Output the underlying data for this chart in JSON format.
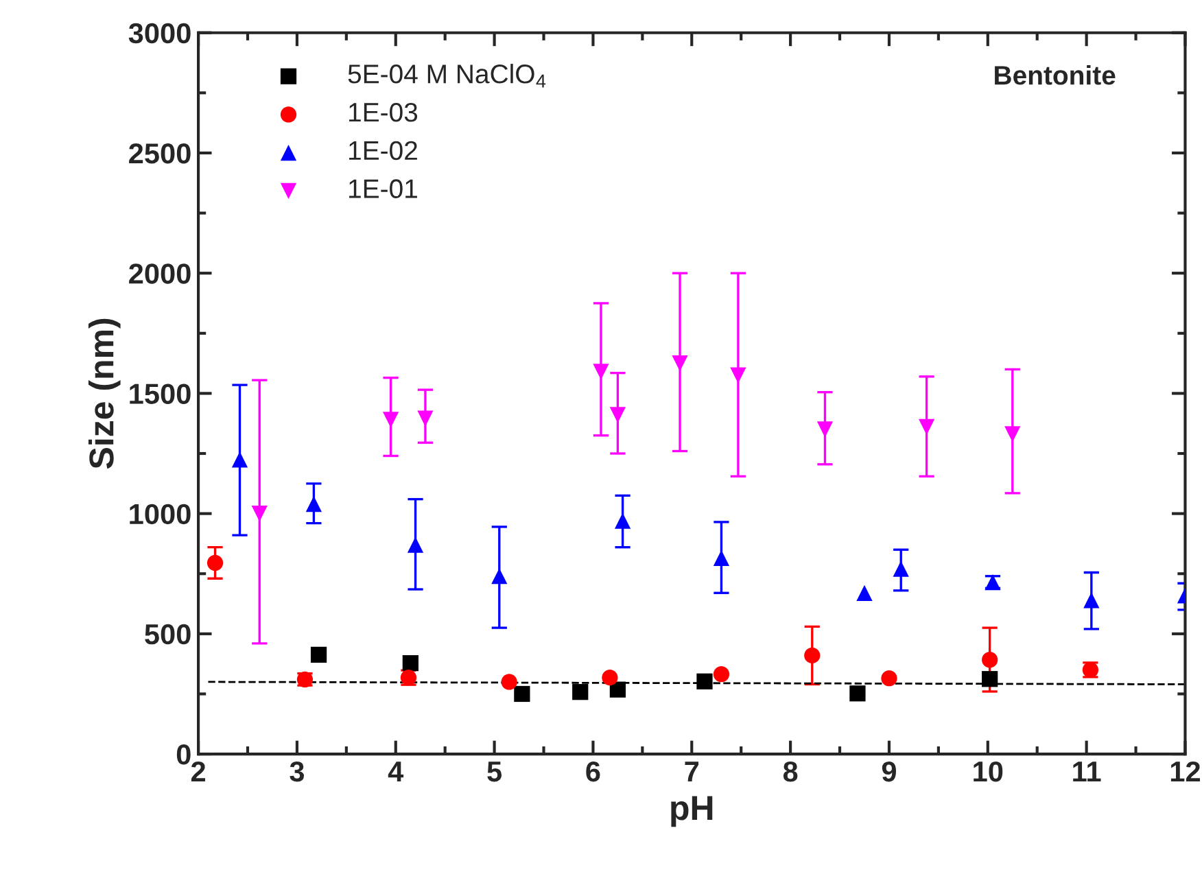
{
  "chart_data": {
    "type": "scatter",
    "xlabel": "pH",
    "ylabel": "Size (nm)",
    "xlim": [
      2,
      12
    ],
    "xticks": [
      2,
      3,
      4,
      5,
      6,
      7,
      8,
      9,
      10,
      11,
      12
    ],
    "ylim": [
      0,
      3000
    ],
    "yticks": [
      0,
      500,
      1000,
      1500,
      2000,
      2500,
      3000
    ],
    "grid": false,
    "legend": "top left",
    "annotations": [
      "Bentonite"
    ],
    "series": [
      {
        "name": "5E-04 M NaClO$_{4}$",
        "color": "#000000",
        "marker": "square",
        "x": [
          3.22,
          4.15,
          5.28,
          5.87,
          6.25,
          7.13,
          8.68,
          10.02
        ],
        "values": [
          413,
          378,
          250,
          258,
          268,
          302,
          252,
          312
        ]
      },
      {
        "name": "1E-03",
        "color": "#ff0000",
        "marker": "circle",
        "x": [
          2.17,
          3.08,
          4.13,
          5.15,
          6.17,
          7.3,
          8.22,
          9.0,
          10.02,
          11.04
        ],
        "values": [
          795,
          310,
          318,
          300,
          318,
          332,
          410,
          315,
          392,
          350
        ],
        "errors": [
          [
            730,
            860
          ],
          [
            285,
            335
          ],
          [
            288,
            348
          ],
          null,
          null,
          null,
          [
            290,
            530
          ],
          null,
          [
            260,
            525
          ],
          [
            320,
            380
          ]
        ]
      },
      {
        "name": "1E-02",
        "color": "#0000ff",
        "marker": "triangle",
        "x": [
          2.42,
          3.17,
          4.2,
          5.05,
          6.3,
          7.3,
          8.75,
          9.12,
          10.05,
          11.05,
          12.0
        ],
        "values": [
          1225,
          1040,
          870,
          740,
          970,
          815,
          670,
          770,
          715,
          640,
          660
        ],
        "errors": [
          [
            910,
            1535
          ],
          [
            960,
            1125
          ],
          [
            685,
            1060
          ],
          [
            525,
            945
          ],
          [
            860,
            1075
          ],
          [
            670,
            965
          ],
          null,
          [
            680,
            850
          ],
          [
            690,
            740
          ],
          [
            520,
            755
          ],
          [
            600,
            710
          ]
        ]
      },
      {
        "name": "1E-01",
        "color": "#ff00ff",
        "marker": "triangle_down",
        "x": [
          2.62,
          3.95,
          4.3,
          6.08,
          6.25,
          6.88,
          7.47,
          8.35,
          9.38,
          10.25
        ],
        "values": [
          1000,
          1390,
          1395,
          1590,
          1410,
          1625,
          1575,
          1350,
          1360,
          1330
        ],
        "errors": [
          [
            460,
            1555
          ],
          [
            1240,
            1565
          ],
          [
            1295,
            1515
          ],
          [
            1325,
            1875
          ],
          [
            1250,
            1585
          ],
          [
            1260,
            2000
          ],
          [
            1155,
            2000
          ],
          [
            1205,
            1505
          ],
          [
            1155,
            1570
          ],
          [
            1085,
            1600
          ]
        ]
      },
      {
        "type": "line",
        "color": "#000000",
        "line_style": "dashed",
        "marker": "none",
        "x": [
          2.1,
          12.0
        ],
        "values": [
          300,
          290
        ]
      }
    ]
  }
}
